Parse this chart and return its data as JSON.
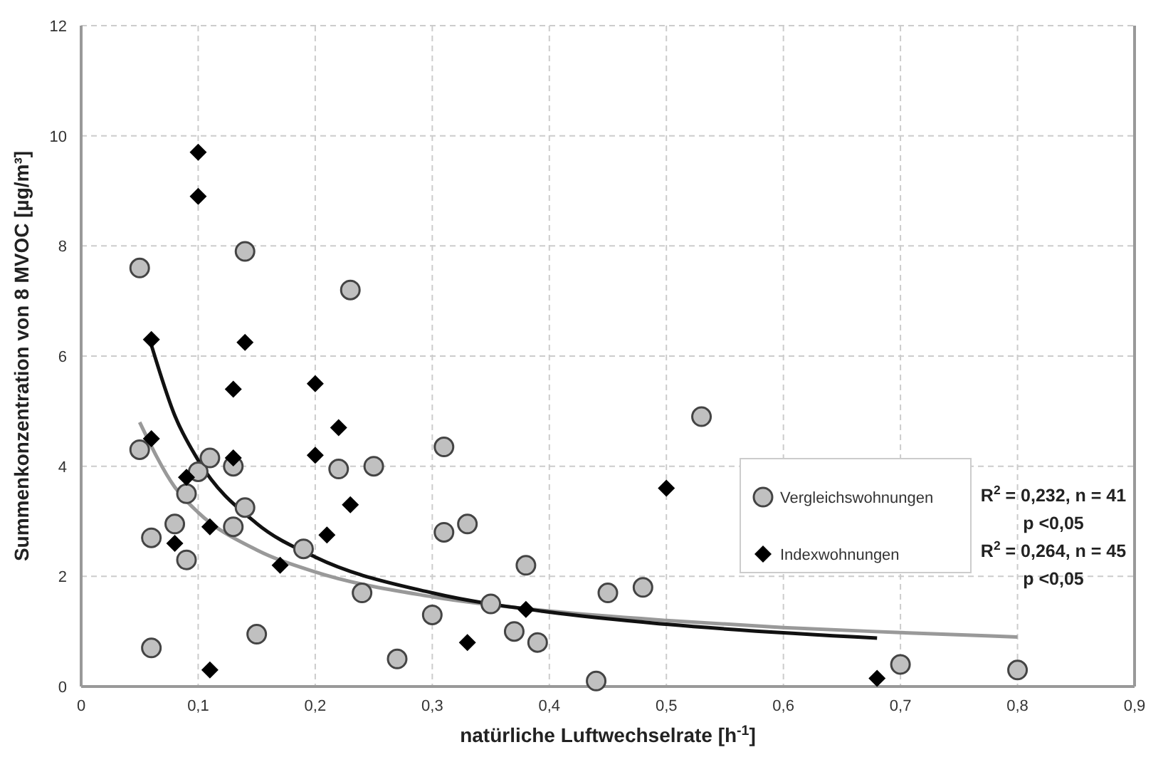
{
  "chart_data": {
    "type": "scatter",
    "xlabel": "natürliche Luftwechselrate [h$^{-1}$]",
    "ylabel": "Summenkonzentration von 8 MVOC [µg/m³]",
    "xlim": [
      0,
      0.9
    ],
    "xticks": [
      0,
      {
        "value": 0.1,
        "label": "0,1"
      },
      {
        "value": 0.2,
        "label": "0,2"
      },
      {
        "value": 0.3,
        "label": "0,3"
      },
      {
        "value": 0.4,
        "label": "0,4"
      },
      {
        "value": 0.5,
        "label": "0,5"
      },
      {
        "value": 0.6,
        "label": "0,6"
      },
      {
        "value": 0.7,
        "label": "0,7"
      },
      {
        "value": 0.8,
        "label": "0,8"
      },
      {
        "value": 0.9,
        "label": "0,9"
      }
    ],
    "ylim": [
      0,
      12
    ],
    "yticks": [
      0,
      2,
      4,
      6,
      8,
      10,
      12
    ],
    "grid": true,
    "legend": "right",
    "series": [
      {
        "name": "Vergleichswohnungen",
        "color": "#c0c0c0",
        "marker": "circle",
        "x": [
          0.05,
          0.05,
          0.06,
          0.06,
          0.08,
          0.09,
          0.09,
          0.1,
          0.11,
          0.13,
          0.13,
          0.14,
          0.14,
          0.15,
          0.19,
          0.22,
          0.23,
          0.24,
          0.25,
          0.27,
          0.3,
          0.31,
          0.31,
          0.33,
          0.35,
          0.37,
          0.38,
          0.39,
          0.44,
          0.45,
          0.48,
          0.53,
          0.7,
          0.8
        ],
        "values": [
          7.6,
          4.3,
          2.7,
          0.7,
          2.95,
          3.5,
          2.3,
          3.9,
          4.15,
          4.0,
          2.9,
          7.9,
          3.25,
          0.95,
          2.5,
          3.95,
          7.2,
          1.7,
          4.0,
          0.5,
          1.3,
          4.35,
          2.8,
          2.95,
          1.5,
          1.0,
          2.2,
          0.8,
          0.1,
          1.7,
          1.8,
          4.9,
          0.4,
          0.3
        ]
      },
      {
        "name": "Indexwohnungen",
        "color": "#000000",
        "marker": "diamond",
        "x": [
          0.1,
          0.1,
          0.06,
          0.14,
          0.13,
          0.2,
          0.22,
          0.06,
          0.13,
          0.2,
          0.09,
          0.23,
          0.21,
          0.08,
          0.11,
          0.17,
          0.11,
          0.33,
          0.38,
          0.5,
          0.68
        ],
        "values": [
          9.7,
          8.9,
          6.3,
          6.25,
          5.4,
          5.5,
          4.7,
          4.5,
          4.15,
          4.2,
          3.8,
          3.3,
          2.75,
          2.6,
          2.9,
          2.2,
          0.3,
          0.8,
          1.4,
          3.6,
          0.15
        ]
      },
      {
        "type": "line",
        "color": "#999999",
        "marker": "none",
        "x": [
          0.05,
          0.08,
          0.1,
          0.15,
          0.2,
          0.3,
          0.4,
          0.5,
          0.6,
          0.7,
          0.8
        ],
        "values": [
          4.8,
          3.62,
          3.16,
          2.48,
          2.08,
          1.63,
          1.37,
          1.2,
          1.07,
          0.98,
          0.9
        ]
      },
      {
        "type": "line",
        "color": "#111111",
        "marker": "none",
        "x": [
          0.06,
          0.08,
          0.1,
          0.15,
          0.2,
          0.3,
          0.4,
          0.5,
          0.68
        ],
        "values": [
          6.2,
          4.92,
          4.11,
          2.96,
          2.35,
          1.7,
          1.35,
          1.13,
          0.88
        ]
      }
    ],
    "annotations": [
      "R$^{2}$ = 0,232, n = 41",
      "p <0,05",
      "R$^{2}$ = 0,264, n = 45",
      "p <0,05"
    ]
  }
}
